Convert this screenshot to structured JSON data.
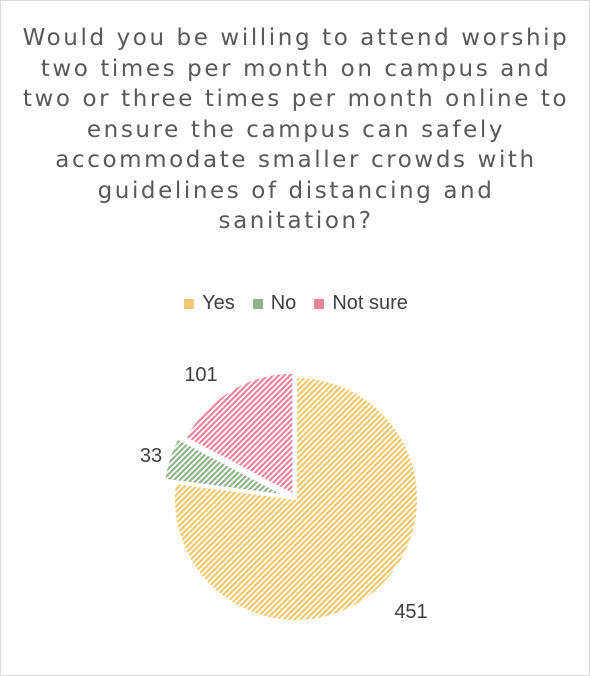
{
  "chart_data": {
    "type": "pie",
    "title": "Would you be willing to attend worship two times per month on campus and two or three times per month online to ensure the campus can safely accommodate smaller crowds with guidelines of distancing and sanitation?",
    "categories": [
      "Yes",
      "No",
      "Not sure"
    ],
    "values": [
      451,
      33,
      101
    ],
    "data_labels": [
      "451",
      "33",
      "101"
    ],
    "colors": [
      "#f2c86e",
      "#8fb38b",
      "#e8859a"
    ],
    "legend_position": "top",
    "slice_style": "diagonal hatch",
    "exploded_slices": [
      "No",
      "Not sure"
    ]
  }
}
